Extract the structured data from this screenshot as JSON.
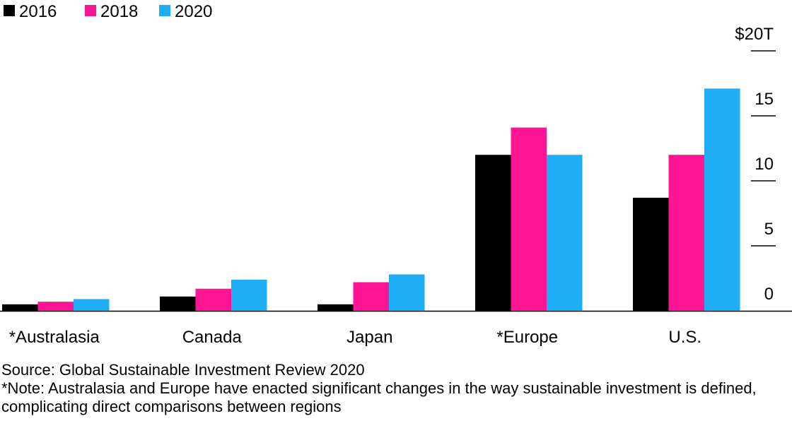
{
  "chart_data": {
    "type": "bar",
    "categories": [
      "*Australasia",
      "Canada",
      "Japan",
      "*Europe",
      "U.S."
    ],
    "series": [
      {
        "name": "2016",
        "color": "#000000",
        "values": [
          0.5,
          1.1,
          0.5,
          12.0,
          8.7
        ]
      },
      {
        "name": "2018",
        "color": "#FF1493",
        "values": [
          0.7,
          1.7,
          2.2,
          14.1,
          12.0
        ]
      },
      {
        "name": "2020",
        "color": "#1FAEF5",
        "values": [
          0.9,
          2.4,
          2.8,
          12.0,
          17.1
        ]
      }
    ],
    "y_ticks": [
      {
        "value": 20,
        "label": "$20T"
      },
      {
        "value": 15,
        "label": "15"
      },
      {
        "value": 10,
        "label": "10"
      },
      {
        "value": 5,
        "label": "5"
      },
      {
        "value": 0,
        "label": "0"
      }
    ],
    "ylim": [
      0,
      20
    ],
    "axis_position": "right",
    "legend_position": "top-left",
    "grid": false
  },
  "footer": {
    "source": "Source: Global Sustainable Investment Review 2020",
    "note": "*Note: Australasia and Europe have enacted significant changes in the way sustainable investment is defined, complicating direct comparisons between regions"
  }
}
